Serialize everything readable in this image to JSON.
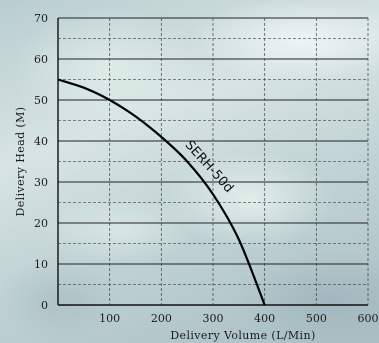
{
  "chart_data": {
    "type": "line",
    "xlabel": "Delivery Volume (L/Min)",
    "ylabel": "Delivery Head (M)",
    "xlim": [
      0,
      600
    ],
    "ylim": [
      0,
      70
    ],
    "x_ticks": [
      100,
      200,
      300,
      400,
      500,
      600
    ],
    "y_ticks": [
      0,
      10,
      20,
      30,
      40,
      50,
      60,
      70
    ],
    "grid": true,
    "series": [
      {
        "name": "SERH-50d",
        "color": "#000000",
        "x": [
          0,
          50,
          100,
          150,
          200,
          250,
          300,
          350,
          400
        ],
        "y": [
          55,
          53,
          50,
          46,
          41,
          35,
          27,
          16,
          0
        ]
      }
    ]
  }
}
